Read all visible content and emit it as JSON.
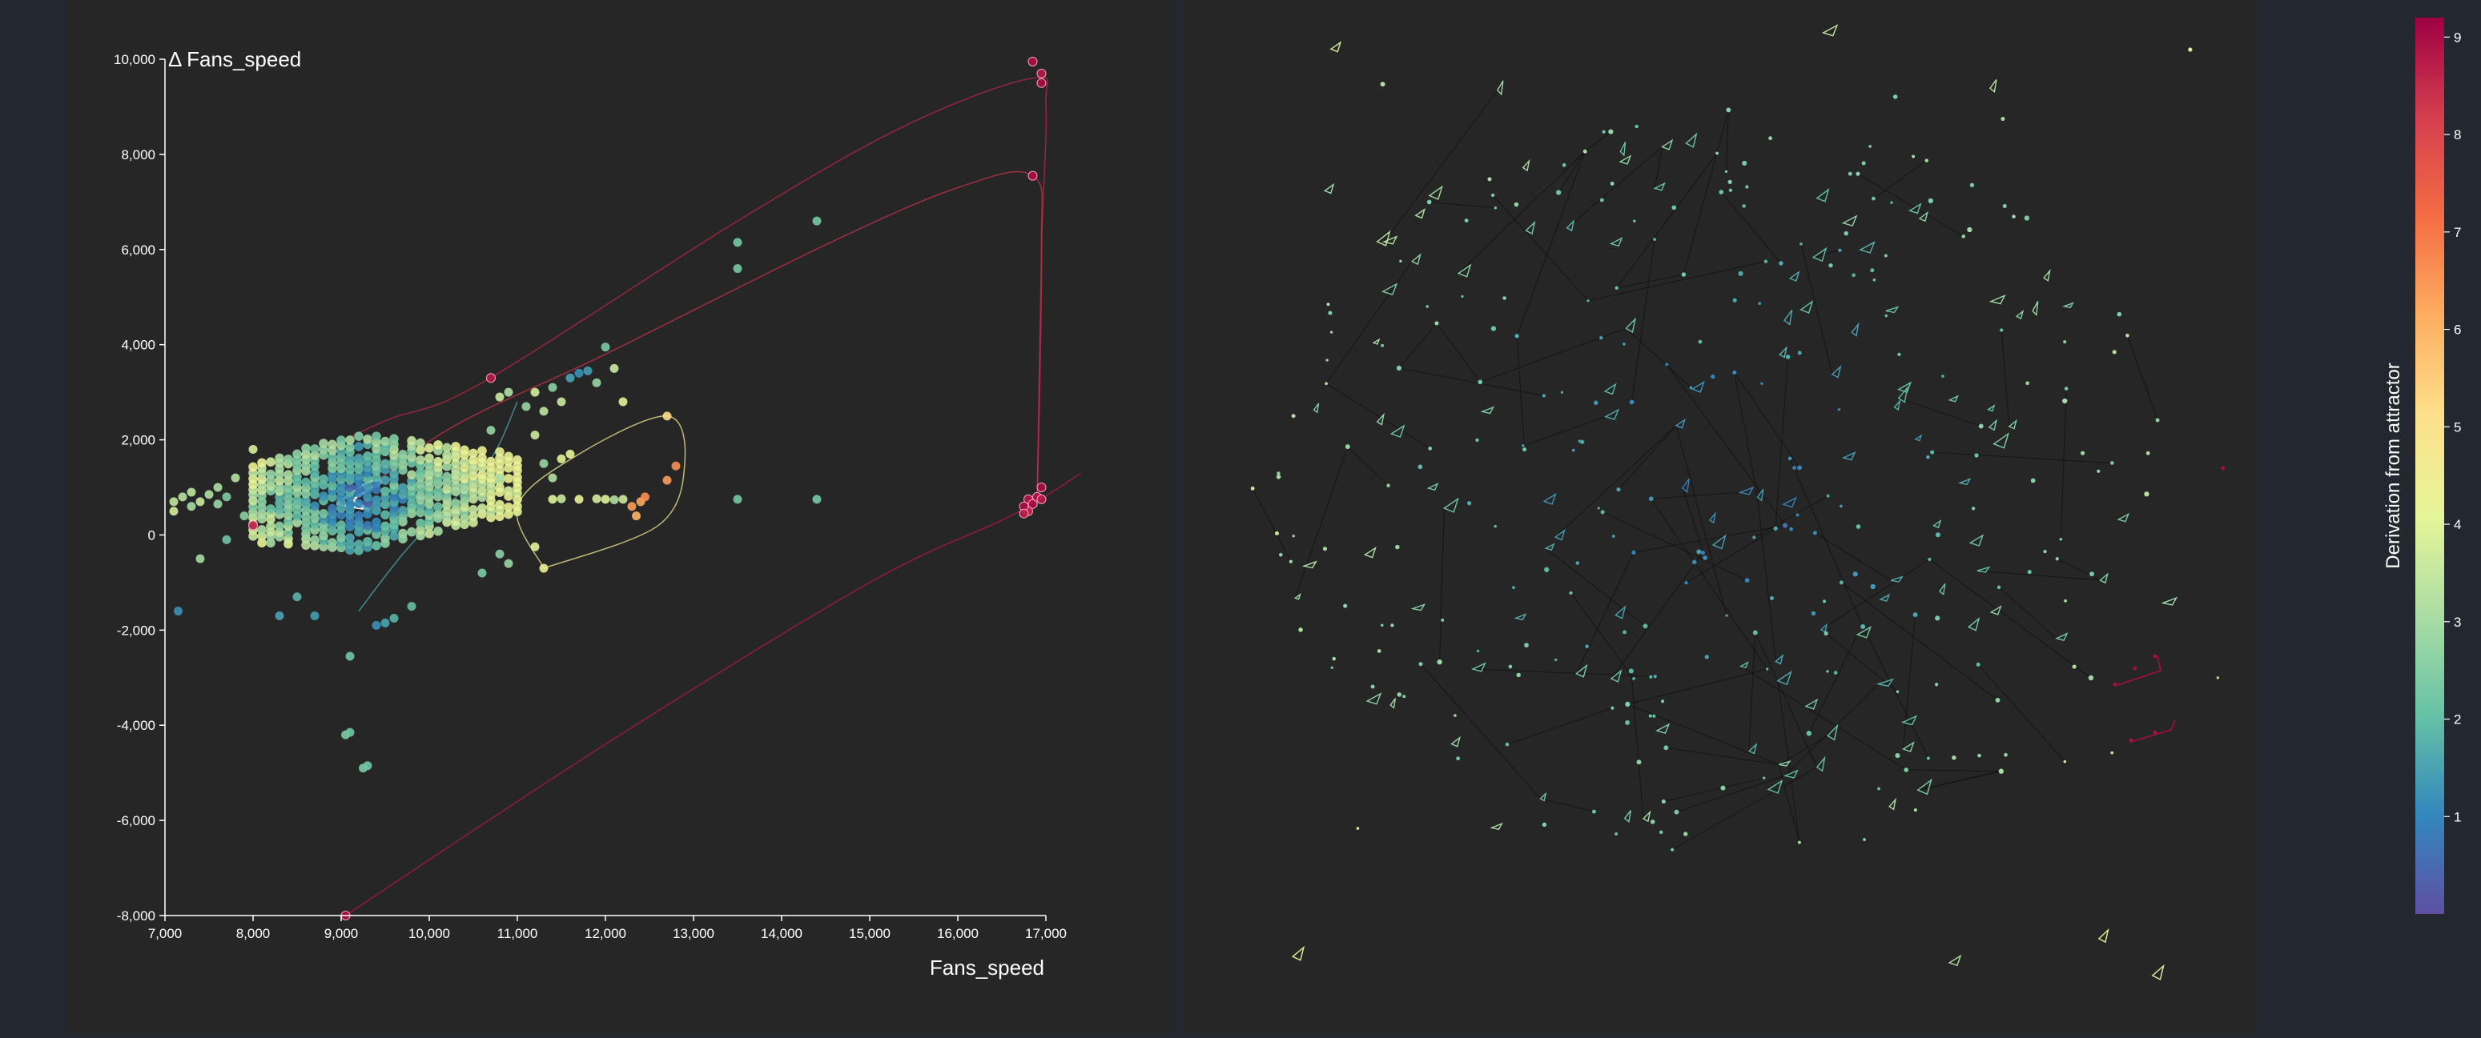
{
  "chart_data": [
    {
      "type": "scatter",
      "title": "",
      "xlabel": "Fans_speed",
      "ylabel": "Δ Fans_speed",
      "xlim": [
        7000,
        17000
      ],
      "ylim": [
        -8000,
        10000
      ],
      "x_ticks": [
        "7,000",
        "8,000",
        "9,000",
        "10,000",
        "11,000",
        "12,000",
        "13,000",
        "14,000",
        "15,000",
        "16,000",
        "17,000"
      ],
      "y_ticks": [
        "-8,000",
        "-6,000",
        "-4,000",
        "-2,000",
        "0",
        "2,000",
        "4,000",
        "6,000",
        "8,000",
        "10,000"
      ],
      "grid": false,
      "color_metric": "Derivation from attractor",
      "cluster_grid": {
        "x_start": 8000,
        "x_end": 11000,
        "x_step": 100,
        "y_min": -900,
        "y_max": 2900
      },
      "points": [
        {
          "x": 7100,
          "y": 700,
          "c": 3.5
        },
        {
          "x": 7100,
          "y": 500,
          "c": 3.8
        },
        {
          "x": 7200,
          "y": 800,
          "c": 3.3
        },
        {
          "x": 7300,
          "y": 600,
          "c": 3.0
        },
        {
          "x": 7300,
          "y": 900,
          "c": 3.4
        },
        {
          "x": 7400,
          "y": 700,
          "c": 3.6
        },
        {
          "x": 7500,
          "y": 850,
          "c": 3.2
        },
        {
          "x": 7600,
          "y": 650,
          "c": 2.8
        },
        {
          "x": 7600,
          "y": 1000,
          "c": 3.1
        },
        {
          "x": 7700,
          "y": 800,
          "c": 2.4
        },
        {
          "x": 7400,
          "y": -500,
          "c": 3.0
        },
        {
          "x": 7800,
          "y": 1200,
          "c": 3.3
        },
        {
          "x": 7150,
          "y": -1600,
          "c": 1.2
        },
        {
          "x": 7900,
          "y": 400,
          "c": 2.6
        },
        {
          "x": 7700,
          "y": -100,
          "c": 2.2
        },
        {
          "x": 8000,
          "y": 200,
          "c": 8.8
        },
        {
          "x": 8000,
          "y": 1800,
          "c": 3.8
        },
        {
          "x": 9100,
          "y": -2550,
          "c": 2.2
        },
        {
          "x": 9050,
          "y": -4200,
          "c": 2.4
        },
        {
          "x": 9100,
          "y": -4150,
          "c": 2.2
        },
        {
          "x": 9250,
          "y": -4900,
          "c": 2.4
        },
        {
          "x": 9300,
          "y": -4850,
          "c": 2.2
        },
        {
          "x": 8300,
          "y": -1700,
          "c": 1.5
        },
        {
          "x": 8500,
          "y": -1300,
          "c": 1.8
        },
        {
          "x": 8700,
          "y": -1700,
          "c": 1.4
        },
        {
          "x": 9400,
          "y": -1900,
          "c": 1.2
        },
        {
          "x": 9500,
          "y": -1850,
          "c": 1.5
        },
        {
          "x": 9600,
          "y": -1750,
          "c": 1.8
        },
        {
          "x": 9800,
          "y": -1500,
          "c": 2.0
        },
        {
          "x": 10700,
          "y": 3300,
          "c": 8.8
        },
        {
          "x": 10800,
          "y": 2900,
          "c": 3.6
        },
        {
          "x": 10900,
          "y": 3000,
          "c": 3.2
        },
        {
          "x": 11100,
          "y": 2700,
          "c": 2.8
        },
        {
          "x": 11200,
          "y": 3000,
          "c": 3.8
        },
        {
          "x": 11300,
          "y": 2600,
          "c": 3.4
        },
        {
          "x": 11400,
          "y": 3100,
          "c": 2.6
        },
        {
          "x": 11500,
          "y": 2800,
          "c": 3.6
        },
        {
          "x": 11600,
          "y": 3300,
          "c": 1.5
        },
        {
          "x": 11700,
          "y": 3400,
          "c": 1.2
        },
        {
          "x": 11800,
          "y": 3450,
          "c": 1.4
        },
        {
          "x": 11900,
          "y": 3200,
          "c": 2.8
        },
        {
          "x": 12000,
          "y": 3950,
          "c": 2.4
        },
        {
          "x": 12100,
          "y": 3500,
          "c": 3.6
        },
        {
          "x": 12200,
          "y": 2800,
          "c": 4.0
        },
        {
          "x": 11200,
          "y": 2100,
          "c": 3.6
        },
        {
          "x": 11300,
          "y": 1500,
          "c": 2.8
        },
        {
          "x": 11400,
          "y": 1200,
          "c": 3.2
        },
        {
          "x": 11500,
          "y": 1600,
          "c": 4.0
        },
        {
          "x": 11600,
          "y": 1700,
          "c": 4.2
        },
        {
          "x": 11400,
          "y": 750,
          "c": 4.0
        },
        {
          "x": 11500,
          "y": 760,
          "c": 3.6
        },
        {
          "x": 11700,
          "y": 750,
          "c": 4.2
        },
        {
          "x": 11900,
          "y": 760,
          "c": 3.8
        },
        {
          "x": 12000,
          "y": 750,
          "c": 4.0
        },
        {
          "x": 12100,
          "y": 740,
          "c": 3.2
        },
        {
          "x": 12200,
          "y": 750,
          "c": 3.6
        },
        {
          "x": 12300,
          "y": 600,
          "c": 6.4
        },
        {
          "x": 12400,
          "y": 700,
          "c": 6.2
        },
        {
          "x": 12450,
          "y": 800,
          "c": 6.6
        },
        {
          "x": 12350,
          "y": 400,
          "c": 6.0
        },
        {
          "x": 12700,
          "y": 2500,
          "c": 5.2
        },
        {
          "x": 12800,
          "y": 1450,
          "c": 6.6
        },
        {
          "x": 12700,
          "y": 1150,
          "c": 6.4
        },
        {
          "x": 11300,
          "y": -700,
          "c": 4.4
        },
        {
          "x": 11200,
          "y": -250,
          "c": 4.0
        },
        {
          "x": 10800,
          "y": -400,
          "c": 2.6
        },
        {
          "x": 10900,
          "y": -600,
          "c": 2.8
        },
        {
          "x": 10600,
          "y": -800,
          "c": 2.4
        },
        {
          "x": 10800,
          "y": 1200,
          "c": 3.0
        },
        {
          "x": 10700,
          "y": 2200,
          "c": 2.8
        },
        {
          "x": 13500,
          "y": 6150,
          "c": 2.3
        },
        {
          "x": 13500,
          "y": 5600,
          "c": 2.3
        },
        {
          "x": 14400,
          "y": 6600,
          "c": 2.3
        },
        {
          "x": 13500,
          "y": 750,
          "c": 2.3
        },
        {
          "x": 14400,
          "y": 750,
          "c": 2.3
        },
        {
          "x": 16850,
          "y": 9950,
          "c": 9.0
        },
        {
          "x": 16950,
          "y": 9700,
          "c": 8.8
        },
        {
          "x": 16950,
          "y": 9500,
          "c": 9.0
        },
        {
          "x": 16850,
          "y": 7550,
          "c": 9.0
        },
        {
          "x": 16800,
          "y": 750,
          "c": 8.8
        },
        {
          "x": 16850,
          "y": 650,
          "c": 9.0
        },
        {
          "x": 16800,
          "y": 500,
          "c": 8.6
        },
        {
          "x": 16900,
          "y": 800,
          "c": 8.9
        },
        {
          "x": 16950,
          "y": 1000,
          "c": 9.0
        },
        {
          "x": 16950,
          "y": 750,
          "c": 8.8
        },
        {
          "x": 16750,
          "y": 600,
          "c": 9.0
        },
        {
          "x": 16750,
          "y": 450,
          "c": 8.7
        },
        {
          "x": 9050,
          "y": -8000,
          "c": 9.0
        }
      ],
      "trajectories": [
        {
          "name": "",
          "c": 8.8,
          "points": [
            [
              9050,
              -8000
            ],
            [
              12000,
              -4400
            ],
            [
              15000,
              -1000
            ],
            [
              16600,
              400
            ],
            [
              17400,
              1300
            ]
          ]
        },
        {
          "name": "",
          "c": 8.6,
          "points": [
            [
              8600,
              1600
            ],
            [
              9500,
              2400
            ],
            [
              10600,
              3200
            ],
            [
              13500,
              6600
            ],
            [
              15400,
              8600
            ],
            [
              16850,
              9600
            ],
            [
              17000,
              9000
            ],
            [
              16950,
              6000
            ],
            [
              16900,
              700
            ]
          ]
        },
        {
          "name": "",
          "c": 8.4,
          "points": [
            [
              9000,
              500
            ],
            [
              10200,
              2200
            ],
            [
              12000,
              3800
            ],
            [
              14500,
              6100
            ],
            [
              16000,
              7300
            ],
            [
              16850,
              7550
            ],
            [
              16950,
              6000
            ],
            [
              16900,
              600
            ]
          ]
        },
        {
          "name": "",
          "c": 4.6,
          "points": [
            [
              11300,
              -700
            ],
            [
              12600,
              200
            ],
            [
              12900,
              1500
            ],
            [
              12700,
              2500
            ],
            [
              11700,
              1700
            ],
            [
              11000,
              600
            ],
            [
              11300,
              -700
            ]
          ]
        },
        {
          "name": "",
          "c": 1.6,
          "points": [
            [
              9200,
              -1600
            ],
            [
              9700,
              -400
            ],
            [
              10200,
              600
            ],
            [
              10700,
              1600
            ],
            [
              11000,
              2800
            ]
          ]
        },
        {
          "name": "",
          "c": 0.5,
          "points": [
            [
              8950,
              650
            ],
            [
              9300,
              1100
            ],
            [
              9450,
              1100
            ],
            [
              9150,
              750
            ],
            [
              9300,
              550
            ],
            [
              8950,
              650
            ]
          ]
        }
      ]
    }
  ],
  "legend": {
    "title": "Derivation from attractor",
    "ticks": [
      "1",
      "2",
      "3",
      "4",
      "5",
      "6",
      "7",
      "8",
      "9"
    ],
    "range": [
      0,
      9.2
    ],
    "colors": [
      "#5e4fa2",
      "#3288bd",
      "#66c2a5",
      "#abdda4",
      "#e6f598",
      "#fee08b",
      "#fdae61",
      "#f46d43",
      "#d53e4f",
      "#9e0142"
    ]
  }
}
